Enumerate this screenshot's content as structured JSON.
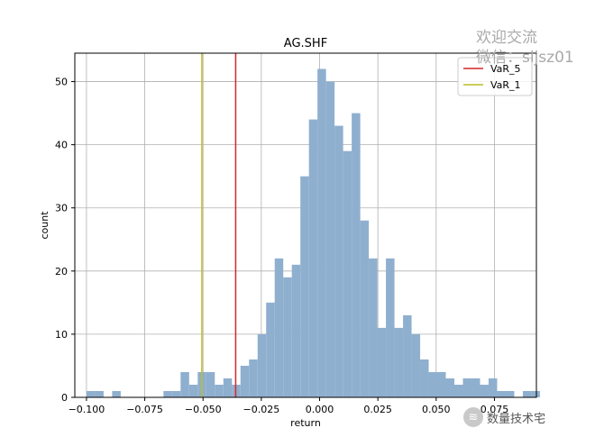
{
  "chart_data": {
    "type": "bar",
    "title": "AG.SHF",
    "xlabel": "return",
    "ylabel": "count",
    "bin_start": -0.1,
    "bin_width": 0.00367,
    "values": [
      1,
      1,
      0,
      1,
      0,
      0,
      0,
      0,
      0,
      1,
      1,
      4,
      2,
      4,
      4,
      2,
      3,
      2,
      5,
      6,
      10,
      15,
      22,
      19,
      21,
      35,
      44,
      52,
      50,
      43,
      39,
      45,
      28,
      22,
      11,
      22,
      11,
      13,
      10,
      6,
      4,
      4,
      3,
      2,
      3,
      3,
      2,
      3,
      1,
      1,
      0,
      1,
      1
    ],
    "xlim": [
      -0.105,
      0.093
    ],
    "ylim": [
      0,
      54.5
    ],
    "xticks": [
      -0.1,
      -0.075,
      -0.05,
      -0.025,
      0.0,
      0.025,
      0.05,
      0.075
    ],
    "xtick_labels": [
      "−0.100",
      "−0.075",
      "−0.050",
      "−0.025",
      "0.000",
      "0.025",
      "0.050",
      "0.075"
    ],
    "yticks": [
      0,
      10,
      20,
      30,
      40,
      50
    ],
    "ytick_labels": [
      "0",
      "10",
      "20",
      "30",
      "40",
      "50"
    ],
    "grid": true,
    "bar_color": "#8fafcf",
    "lines": [
      {
        "name": "VaR_5",
        "x": -0.036,
        "color": "#d62728"
      },
      {
        "name": "VaR_1",
        "x": -0.0505,
        "color": "#bcbd22"
      }
    ],
    "legend_position": "top-right"
  },
  "watermark": {
    "line1": "欢迎交流",
    "line2": "微信：sljsz01",
    "badge": "数量技术宅",
    "badge_icon": "wechat-logo-icon"
  }
}
